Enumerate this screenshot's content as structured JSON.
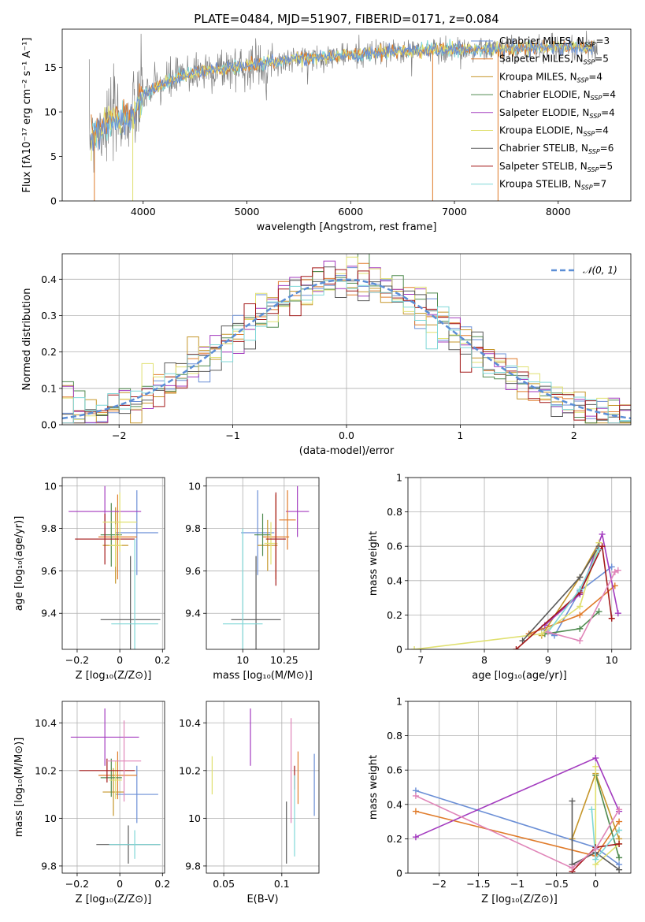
{
  "figure": {
    "title": "PLATE=0484, MJD=51907, FIBERID=0171, z=0.084"
  },
  "model_colors": [
    "#6b8fd6",
    "#e07b2a",
    "#c5962a",
    "#4f8a4f",
    "#a33bbf",
    "#e0e070",
    "#5a5a5a",
    "#a31818",
    "#7fd7d7"
  ],
  "chart_data": [
    {
      "id": "spectrum",
      "type": "line",
      "xlabel": "wavelength [Angstrom, rest frame]",
      "ylabel": "Flux [fλ10⁻¹⁷ erg cm⁻² s⁻¹ A⁻¹]",
      "xlim": [
        3220,
        8700
      ],
      "ylim": [
        0,
        19.3
      ],
      "xticks": [
        4000,
        5000,
        6000,
        7000,
        8000
      ],
      "yticks": [
        0,
        5,
        10,
        15
      ],
      "grid": false,
      "legend_position": "right",
      "legend": [
        "Chabrier MILES, N_SSP=3",
        "Salpeter MILES, N_SSP=5",
        "Kroupa MILES, N_SSP=4",
        "Chabrier ELODIE, N_SSP=4",
        "Salpeter ELODIE, N_SSP=4",
        "Kroupa ELODIE, N_SSP=4",
        "Chabrier STELIB, N_SSP=6",
        "Salpeter STELIB, N_SSP=5",
        "Kroupa STELIB, N_SSP=7"
      ],
      "continuum": {
        "x": [
          3500,
          3700,
          3900,
          4000,
          4200,
          4500,
          5000,
          5500,
          6000,
          6500,
          7000,
          7500,
          8000,
          8350
        ],
        "y": [
          7.5,
          9.0,
          9.5,
          12.0,
          13.2,
          14.5,
          15.2,
          16.0,
          16.4,
          16.8,
          17.0,
          17.1,
          17.3,
          17.2
        ]
      }
    },
    {
      "id": "residuals",
      "type": "step",
      "xlabel": "(data-model)/error",
      "ylabel": "Normed distribution",
      "xlim": [
        -2.5,
        2.5
      ],
      "ylim": [
        0,
        0.47
      ],
      "xticks": [
        -2,
        -1,
        0,
        1,
        2
      ],
      "yticks": [
        0.0,
        0.1,
        0.2,
        0.3,
        0.4
      ],
      "grid": true,
      "legend_position": "top-right",
      "reference_label": "𝒩(0, 1)",
      "reference_curve": "normal(0,1)"
    },
    {
      "id": "age_vs_Z",
      "type": "errorbar",
      "xlabel": "Z [log₁₀(Z/Z⊙)]",
      "ylabel": "age  [log₁₀(age/yr)]",
      "xlim": [
        -0.27,
        0.21
      ],
      "ylim": [
        9.23,
        10.04
      ],
      "xticks": [
        -0.2,
        0.0,
        0.2
      ],
      "yticks": [
        9.4,
        9.6,
        9.8,
        10.0
      ],
      "grid": true,
      "points": [
        {
          "x": 0.08,
          "y": 9.78,
          "xerr": 0.1,
          "yerr": 0.2,
          "c": 0
        },
        {
          "x": -0.01,
          "y": 9.76,
          "xerr": 0.09,
          "yerr": 0.2,
          "c": 1
        },
        {
          "x": -0.02,
          "y": 9.72,
          "xerr": 0.06,
          "yerr": 0.18,
          "c": 2
        },
        {
          "x": -0.04,
          "y": 9.77,
          "xerr": 0.05,
          "yerr": 0.15,
          "c": 3
        },
        {
          "x": -0.07,
          "y": 9.88,
          "xerr": 0.17,
          "yerr": 0.12,
          "c": 4
        },
        {
          "x": -0.02,
          "y": 9.72,
          "xerr": 0.03,
          "yerr": 0.1,
          "c": 5
        },
        {
          "x": 0.05,
          "y": 9.37,
          "xerr": 0.14,
          "yerr": 0.3,
          "c": 6
        },
        {
          "x": -0.07,
          "y": 9.75,
          "xerr": 0.14,
          "yerr": 0.12,
          "c": 7
        },
        {
          "x": 0.07,
          "y": 9.35,
          "xerr": 0.11,
          "yerr": 0.4,
          "c": 8
        },
        {
          "x": 0.0,
          "y": 9.83,
          "xerr": 0.08,
          "yerr": 0.14,
          "c": 5
        }
      ]
    },
    {
      "id": "age_vs_mass",
      "type": "errorbar",
      "xlabel": "mass [log₁₀(M/M⊙)]",
      "xlim": [
        9.78,
        10.46
      ],
      "ylim": [
        9.23,
        10.04
      ],
      "xticks": [
        10.0,
        10.25
      ],
      "yticks": [
        9.4,
        9.6,
        9.8,
        10.0
      ],
      "grid": true,
      "points": [
        {
          "x": 10.09,
          "y": 9.78,
          "xerr": 0.1,
          "yerr": 0.2,
          "c": 0
        },
        {
          "x": 10.2,
          "y": 9.76,
          "xerr": 0.08,
          "yerr": 0.2,
          "c": 1
        },
        {
          "x": 10.15,
          "y": 9.72,
          "xerr": 0.06,
          "yerr": 0.12,
          "c": 2
        },
        {
          "x": 10.12,
          "y": 9.77,
          "xerr": 0.05,
          "yerr": 0.1,
          "c": 3
        },
        {
          "x": 10.33,
          "y": 9.88,
          "xerr": 0.07,
          "yerr": 0.12,
          "c": 4
        },
        {
          "x": 10.17,
          "y": 9.73,
          "xerr": 0.04,
          "yerr": 0.1,
          "c": 5
        },
        {
          "x": 10.08,
          "y": 9.37,
          "xerr": 0.15,
          "yerr": 0.3,
          "c": 6
        },
        {
          "x": 10.2,
          "y": 9.75,
          "xerr": 0.06,
          "yerr": 0.22,
          "c": 7
        },
        {
          "x": 10.0,
          "y": 9.35,
          "xerr": 0.12,
          "yerr": 0.45,
          "c": 8
        },
        {
          "x": 10.27,
          "y": 9.84,
          "xerr": 0.05,
          "yerr": 0.14,
          "c": 1
        }
      ]
    },
    {
      "id": "mass_weight_vs_age",
      "type": "line",
      "xlabel": "age  [log₁₀(age/yr)]",
      "ylabel": "mass weight",
      "xlim": [
        6.8,
        10.3
      ],
      "ylim": [
        0,
        1.0
      ],
      "xticks": [
        7,
        8,
        9,
        10
      ],
      "yticks": [
        0.0,
        0.2,
        0.4,
        0.6,
        0.8,
        1.0
      ],
      "grid": true,
      "series": [
        {
          "c": 0,
          "x": [
            8.9,
            9.1,
            9.5,
            10.0
          ],
          "y": [
            0.12,
            0.08,
            0.34,
            0.48
          ]
        },
        {
          "c": 1,
          "x": [
            8.7,
            9.5,
            10.05
          ],
          "y": [
            0.09,
            0.2,
            0.37
          ]
        },
        {
          "c": 2,
          "x": [
            8.9,
            9.5,
            9.8
          ],
          "y": [
            0.08,
            0.42,
            0.62
          ]
        },
        {
          "c": 3,
          "x": [
            8.95,
            9.5,
            9.8
          ],
          "y": [
            0.09,
            0.12,
            0.22
          ]
        },
        {
          "c": 4,
          "x": [
            8.95,
            9.5,
            9.85,
            10.1
          ],
          "y": [
            0.14,
            0.32,
            0.67,
            0.21
          ]
        },
        {
          "c": 5,
          "x": [
            6.9,
            8.9,
            9.5,
            9.8
          ],
          "y": [
            0.0,
            0.09,
            0.25,
            0.62
          ]
        },
        {
          "c": 6,
          "x": [
            8.6,
            9.5,
            9.8
          ],
          "y": [
            0.05,
            0.42,
            0.6
          ]
        },
        {
          "c": 7,
          "x": [
            8.5,
            9.5,
            9.85,
            10.0
          ],
          "y": [
            0.0,
            0.33,
            0.6,
            0.18
          ]
        },
        {
          "c": 8,
          "x": [
            9.0,
            9.5,
            9.8
          ],
          "y": [
            0.1,
            0.35,
            0.58
          ]
        },
        {
          "c": 9,
          "x": [
            9.0,
            9.5,
            10.05,
            10.1
          ],
          "y": [
            0.1,
            0.05,
            0.45,
            0.46
          ]
        }
      ]
    },
    {
      "id": "mass_vs_Z",
      "type": "errorbar",
      "xlabel": "Z [log₁₀(Z/Z⊙)]",
      "ylabel": "mass [log₁₀(M/M⊙)]",
      "xlim": [
        -0.27,
        0.21
      ],
      "ylim": [
        9.77,
        10.49
      ],
      "xticks": [
        -0.2,
        0.0,
        0.2
      ],
      "yticks": [
        9.8,
        10.0,
        10.2,
        10.4
      ],
      "grid": true,
      "points": [
        {
          "x": 0.08,
          "y": 10.1,
          "xerr": 0.1,
          "yerr": 0.12,
          "c": 0
        },
        {
          "x": -0.01,
          "y": 10.18,
          "xerr": 0.09,
          "yerr": 0.1,
          "c": 1
        },
        {
          "x": -0.03,
          "y": 10.11,
          "xerr": 0.05,
          "yerr": 0.1,
          "c": 2
        },
        {
          "x": -0.04,
          "y": 10.17,
          "xerr": 0.05,
          "yerr": 0.08,
          "c": 3
        },
        {
          "x": -0.07,
          "y": 10.34,
          "xerr": 0.16,
          "yerr": 0.12,
          "c": 4
        },
        {
          "x": -0.02,
          "y": 10.16,
          "xerr": 0.03,
          "yerr": 0.08,
          "c": 5
        },
        {
          "x": 0.04,
          "y": 9.89,
          "xerr": 0.15,
          "yerr": 0.08,
          "c": 6
        },
        {
          "x": -0.06,
          "y": 10.2,
          "xerr": 0.13,
          "yerr": 0.05,
          "c": 7
        },
        {
          "x": 0.07,
          "y": 9.89,
          "xerr": 0.12,
          "yerr": 0.06,
          "c": 8
        },
        {
          "x": 0.02,
          "y": 10.24,
          "xerr": 0.08,
          "yerr": 0.17,
          "c": 9
        }
      ]
    },
    {
      "id": "mass_vs_EBV",
      "type": "errorbar",
      "xlabel": "E(B-V)",
      "xlim": [
        0.035,
        0.132
      ],
      "ylim": [
        9.77,
        10.49
      ],
      "xticks": [
        0.05,
        0.1
      ],
      "yticks": [
        9.8,
        10.0,
        10.2,
        10.4
      ],
      "grid": true,
      "points": [
        {
          "x": 0.128,
          "y": 10.14,
          "yerr": 0.13,
          "c": 0
        },
        {
          "x": 0.114,
          "y": 10.17,
          "yerr": 0.11,
          "c": 1
        },
        {
          "x": 0.04,
          "y": 10.18,
          "yerr": 0.08,
          "c": 5
        },
        {
          "x": 0.073,
          "y": 10.34,
          "yerr": 0.12,
          "c": 4
        },
        {
          "x": 0.104,
          "y": 9.94,
          "yerr": 0.13,
          "c": 6
        },
        {
          "x": 0.111,
          "y": 10.17,
          "yerr": 0.05,
          "c": 7
        },
        {
          "x": 0.108,
          "y": 10.2,
          "yerr": 0.22,
          "c": 9
        },
        {
          "x": 0.111,
          "y": 10.01,
          "yerr": 0.17,
          "c": 8
        }
      ]
    },
    {
      "id": "mass_weight_vs_Z",
      "type": "line",
      "xlabel": "Z [log₁₀(Z/Z⊙)]",
      "ylabel": "mass weight",
      "xlim": [
        -2.4,
        0.45
      ],
      "ylim": [
        0,
        1.0
      ],
      "xticks": [
        -2.0,
        -1.5,
        -1.0,
        -0.5,
        0.0
      ],
      "yticks": [
        0.0,
        0.2,
        0.4,
        0.6,
        0.8,
        1.0
      ],
      "grid": true,
      "series": [
        {
          "c": 0,
          "x": [
            -2.3,
            0.0,
            0.3
          ],
          "y": [
            0.48,
            0.15,
            0.05
          ]
        },
        {
          "c": 1,
          "x": [
            -2.3,
            0.0,
            0.3
          ],
          "y": [
            0.36,
            0.1,
            0.3
          ]
        },
        {
          "c": 2,
          "x": [
            -0.3,
            0.0,
            0.3
          ],
          "y": [
            0.2,
            0.58,
            0.2
          ]
        },
        {
          "c": 3,
          "x": [
            0.0,
            0.3
          ],
          "y": [
            0.57,
            0.09
          ]
        },
        {
          "c": 4,
          "x": [
            -2.3,
            0.0,
            0.3
          ],
          "y": [
            0.21,
            0.67,
            0.36
          ]
        },
        {
          "c": 5,
          "x": [
            0.0,
            0.0,
            0.3
          ],
          "y": [
            0.62,
            0.05,
            0.17
          ]
        },
        {
          "c": 6,
          "x": [
            -0.3,
            -0.3,
            0.0,
            0.3
          ],
          "y": [
            0.42,
            0.05,
            0.12,
            0.02
          ]
        },
        {
          "c": 7,
          "x": [
            -0.3,
            0.0,
            0.3
          ],
          "y": [
            0.01,
            0.15,
            0.17
          ]
        },
        {
          "c": 8,
          "x": [
            -0.05,
            0.0,
            0.3
          ],
          "y": [
            0.37,
            0.08,
            0.25
          ]
        },
        {
          "c": 9,
          "x": [
            -2.3,
            -0.3,
            0.0,
            0.3
          ],
          "y": [
            0.45,
            0.03,
            0.14,
            0.37
          ]
        }
      ]
    }
  ]
}
